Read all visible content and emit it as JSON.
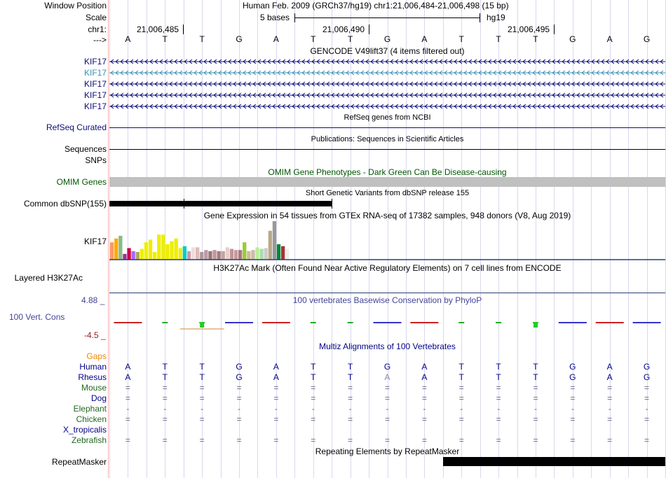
{
  "header": {
    "window_position_label": "Window Position",
    "window_position_value": "Human Feb. 2009 (GRCh37/hg19)   chr1:21,006,484-21,006,498 (15 bp)",
    "scale_label": "Scale",
    "scale_bases": "5 bases",
    "scale_assembly": "hg19",
    "chrom_label": "chr1:",
    "coord_ticks": [
      "21,006,485",
      "21,006,490",
      "21,006,495"
    ],
    "strand_label": "--->",
    "bases": [
      "A",
      "T",
      "T",
      "G",
      "A",
      "T",
      "T",
      "G",
      "A",
      "T",
      "T",
      "T",
      "G",
      "A",
      "G"
    ]
  },
  "tracks": {
    "gencode": {
      "title": "GENCODE V49lift37 (4 items filtered out)",
      "items": [
        {
          "label": "KIF17",
          "color": "#0c0c78"
        },
        {
          "label": "KIF17",
          "color": "#3b8fb5"
        },
        {
          "label": "KIF17",
          "color": "#0c0c78"
        },
        {
          "label": "KIF17",
          "color": "#0c0c78"
        },
        {
          "label": "KIF17",
          "color": "#0c0c78"
        }
      ]
    },
    "refseq": {
      "title": "RefSeq genes from NCBI",
      "label": "RefSeq Curated"
    },
    "publications": {
      "title": "Publications: Sequences in Scientific Articles",
      "label": "Sequences"
    },
    "snps": {
      "label": "SNPs"
    },
    "omim": {
      "title": "OMIM Gene Phenotypes - Dark Green Can Be Disease-causing",
      "label": "OMIM Genes",
      "color": "#005500"
    },
    "dbsnp": {
      "title": "Short Genetic Variants from dbSNP release 155",
      "label": "Common dbSNP(155)"
    },
    "gtex": {
      "title": "Gene Expression in 54 tissues from GTEx RNA-seq of 17382 samples, 948 donors (V8, Aug 2019)",
      "label": "KIF17",
      "bars": [
        {
          "v": 0.45,
          "c": "#ff9966"
        },
        {
          "v": 0.55,
          "c": "#ffaa00"
        },
        {
          "v": 0.62,
          "c": "#88bb88"
        },
        {
          "v": 0.15,
          "c": "#993399"
        },
        {
          "v": 0.3,
          "c": "#cc0044"
        },
        {
          "v": 0.22,
          "c": "#aa66ff"
        },
        {
          "v": 0.2,
          "c": "#aaaa66"
        },
        {
          "v": 0.28,
          "c": "#eeee00"
        },
        {
          "v": 0.45,
          "c": "#eeee00"
        },
        {
          "v": 0.52,
          "c": "#eeee00"
        },
        {
          "v": 0.2,
          "c": "#eeee00"
        },
        {
          "v": 0.65,
          "c": "#eeee00"
        },
        {
          "v": 0.65,
          "c": "#eeee00"
        },
        {
          "v": 0.4,
          "c": "#eeee00"
        },
        {
          "v": 0.48,
          "c": "#eeee00"
        },
        {
          "v": 0.55,
          "c": "#eeee00"
        },
        {
          "v": 0.3,
          "c": "#eeee00"
        },
        {
          "v": 0.35,
          "c": "#00cccc"
        },
        {
          "v": 0.22,
          "c": "#cc99aa"
        },
        {
          "v": 0.32,
          "c": "#eedddd"
        },
        {
          "v": 0.32,
          "c": "#ddbbbb"
        },
        {
          "v": 0.2,
          "c": "#aa9999"
        },
        {
          "v": 0.25,
          "c": "#bb99aa"
        },
        {
          "v": 0.22,
          "c": "#997777"
        },
        {
          "v": 0.25,
          "c": "#bb9999"
        },
        {
          "v": 0.22,
          "c": "#aa7788"
        },
        {
          "v": 0.22,
          "c": "#bbaa99"
        },
        {
          "v": 0.32,
          "c": "#eecccc"
        },
        {
          "v": 0.28,
          "c": "#bb9999"
        },
        {
          "v": 0.25,
          "c": "#cc9999"
        },
        {
          "v": 0.25,
          "c": "#aa7788"
        },
        {
          "v": 0.45,
          "c": "#99cc33"
        },
        {
          "v": 0.22,
          "c": "#ccbb99"
        },
        {
          "v": 0.25,
          "c": "#ccbbaa"
        },
        {
          "v": 0.32,
          "c": "#bbee99"
        },
        {
          "v": 0.28,
          "c": "#aaddaa"
        },
        {
          "v": 0.3,
          "c": "#cccccc"
        },
        {
          "v": 0.75,
          "c": "#bbaa88"
        },
        {
          "v": 1.0,
          "c": "#999999"
        },
        {
          "v": 0.4,
          "c": "#008833"
        },
        {
          "v": 0.35,
          "c": "#aa3333"
        },
        {
          "v": 0.28,
          "c": "#eeeeee"
        }
      ]
    },
    "h3k27ac": {
      "title": "H3K27Ac Mark (Often Found Near Active Regulatory Elements) on 7 cell lines from ENCODE",
      "label": "Layered H3K27Ac"
    },
    "cons": {
      "title": "100 vertebrates Basewise Conservation by PhyloP",
      "label": "100 Vert. Cons",
      "max": "4.88 _",
      "min": "-4.5 _"
    },
    "multiz": {
      "title": "Multiz Alignments of 100 Vertebrates",
      "gaps_label": "Gaps",
      "species": [
        {
          "name": "Human",
          "color": "#000088",
          "row": [
            "A",
            "T",
            "T",
            "G",
            "A",
            "T",
            "T",
            "G",
            "A",
            "T",
            "T",
            "T",
            "G",
            "A",
            "G"
          ]
        },
        {
          "name": "Rhesus",
          "color": "#000088",
          "row": [
            "A",
            "T",
            "T",
            "G",
            "A",
            "T",
            "T",
            "A",
            "A",
            "T",
            "T",
            "T",
            "G",
            "A",
            "G"
          ]
        },
        {
          "name": "Mouse",
          "color": "#226622",
          "row": [
            "=",
            "=",
            "=",
            "=",
            "=",
            "=",
            "=",
            "=",
            "=",
            "=",
            "=",
            "=",
            "=",
            "=",
            "="
          ]
        },
        {
          "name": "Dog",
          "color": "#000088",
          "row": [
            "=",
            "=",
            "=",
            "=",
            "=",
            "=",
            "=",
            "=",
            "=",
            "=",
            "=",
            "=",
            "=",
            "=",
            "="
          ]
        },
        {
          "name": "Elephant",
          "color": "#226622",
          "row": [
            "-",
            "-",
            "-",
            "-",
            "-",
            "-",
            "-",
            "-",
            "-",
            "-",
            "-",
            "-",
            "-",
            "-",
            "-"
          ]
        },
        {
          "name": "Chicken",
          "color": "#226622",
          "row": [
            "=",
            "=",
            "=",
            "=",
            "=",
            "=",
            "=",
            "=",
            "=",
            "=",
            "=",
            "=",
            "=",
            "=",
            "="
          ]
        },
        {
          "name": "X_tropicalis",
          "color": "#000088",
          "row": [
            "",
            "",
            "",
            "",
            "",
            "",
            "",
            "",
            "",
            "",
            "",
            "",
            "",
            "",
            ""
          ]
        },
        {
          "name": "Zebrafish",
          "color": "#226622",
          "row": [
            "=",
            "=",
            "=",
            "=",
            "=",
            "=",
            "=",
            "=",
            "=",
            "=",
            "=",
            "=",
            "=",
            "=",
            "="
          ]
        }
      ]
    },
    "repeatmasker": {
      "title": "Repeating Elements by RepeatMasker",
      "label": "RepeatMasker"
    }
  }
}
